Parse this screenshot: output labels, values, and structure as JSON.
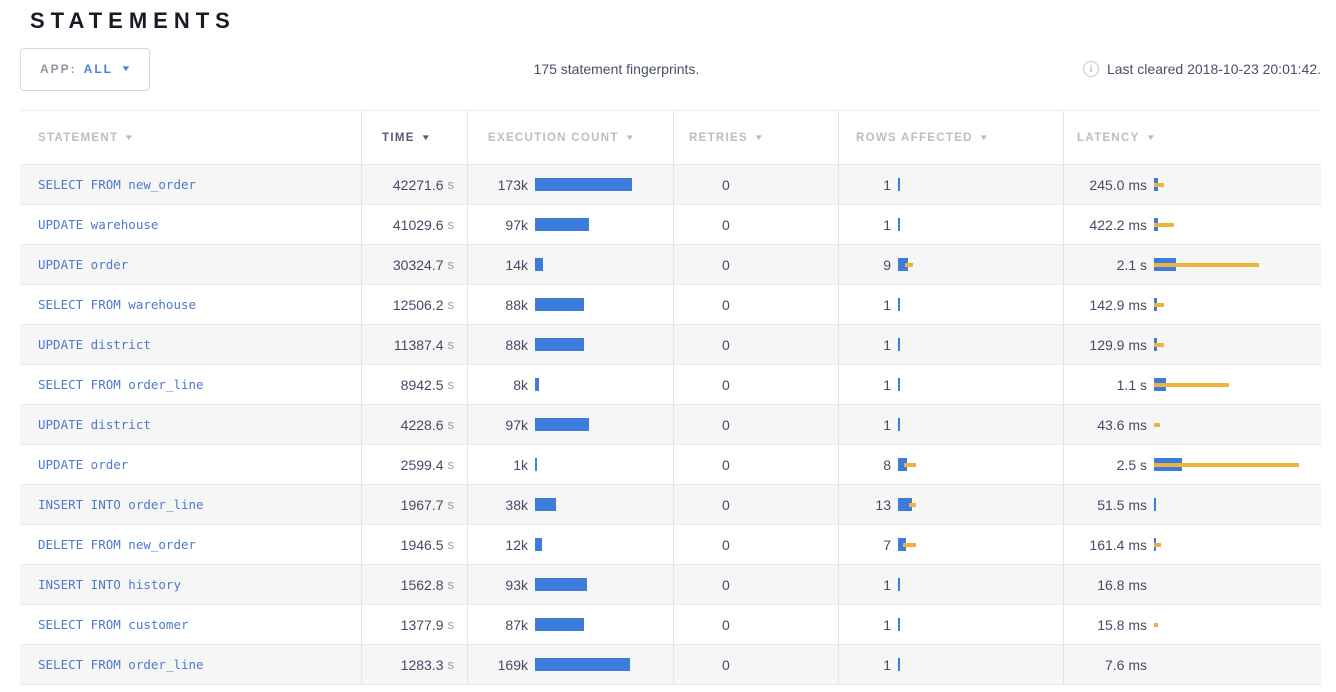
{
  "page_title": "STATEMENTS",
  "toolbar": {
    "app_label": "APP:",
    "app_value": "ALL",
    "summary": "175 statement fingerprints.",
    "last_cleared": "Last cleared 2018-10-23 20:01:42."
  },
  "icons": {
    "info": "i",
    "sort_arrow": "▼",
    "dropdown_caret": "▼"
  },
  "colors": {
    "bar_blue": "#3e7cdb",
    "bar_yellow": "#ecb33d",
    "link_blue": "#4e79cb",
    "accent_blue": "#4a7de2"
  },
  "table": {
    "columns": [
      {
        "label": "STATEMENT",
        "sorted": false
      },
      {
        "label": "TIME",
        "sorted": true
      },
      {
        "label": "EXECUTION COUNT",
        "sorted": false
      },
      {
        "label": "RETRIES",
        "sorted": false
      },
      {
        "label": "ROWS AFFECTED",
        "sorted": false
      },
      {
        "label": "LATENCY",
        "sorted": false
      }
    ],
    "rows": [
      {
        "statement": "SELECT FROM new_order",
        "time": "42271.6",
        "time_unit": "s",
        "exec_label": "173k",
        "exec_k": 173,
        "retries": "0",
        "rows_affected": "1",
        "rows_bar": 2,
        "rows_whisker": 0,
        "latency": "245.0 ms",
        "lat_bar": 4,
        "lat_whisker": 10
      },
      {
        "statement": "UPDATE warehouse",
        "time": "41029.6",
        "time_unit": "s",
        "exec_label": "97k",
        "exec_k": 97,
        "retries": "0",
        "rows_affected": "1",
        "rows_bar": 2,
        "rows_whisker": 0,
        "latency": "422.2 ms",
        "lat_bar": 4,
        "lat_whisker": 20
      },
      {
        "statement": "UPDATE order",
        "time": "30324.7",
        "time_unit": "s",
        "exec_label": "14k",
        "exec_k": 14,
        "retries": "0",
        "rows_affected": "9",
        "rows_bar": 10,
        "rows_whisker": 8,
        "latency": "2.1 s",
        "lat_bar": 22,
        "lat_whisker": 105
      },
      {
        "statement": "SELECT FROM warehouse",
        "time": "12506.2",
        "time_unit": "s",
        "exec_label": "88k",
        "exec_k": 88,
        "retries": "0",
        "rows_affected": "1",
        "rows_bar": 2,
        "rows_whisker": 0,
        "latency": "142.9 ms",
        "lat_bar": 3,
        "lat_whisker": 10
      },
      {
        "statement": "UPDATE district",
        "time": "11387.4",
        "time_unit": "s",
        "exec_label": "88k",
        "exec_k": 88,
        "retries": "0",
        "rows_affected": "1",
        "rows_bar": 2,
        "rows_whisker": 0,
        "latency": "129.9 ms",
        "lat_bar": 3,
        "lat_whisker": 10
      },
      {
        "statement": "SELECT FROM order_line",
        "time": "8942.5",
        "time_unit": "s",
        "exec_label": "8k",
        "exec_k": 8,
        "retries": "0",
        "rows_affected": "1",
        "rows_bar": 2,
        "rows_whisker": 0,
        "latency": "1.1 s",
        "lat_bar": 12,
        "lat_whisker": 75
      },
      {
        "statement": "UPDATE district",
        "time": "4228.6",
        "time_unit": "s",
        "exec_label": "97k",
        "exec_k": 97,
        "retries": "0",
        "rows_affected": "1",
        "rows_bar": 2,
        "rows_whisker": 0,
        "latency": "43.6 ms",
        "lat_bar": 0,
        "lat_whisker": 6
      },
      {
        "statement": "UPDATE order",
        "time": "2599.4",
        "time_unit": "s",
        "exec_label": "1k",
        "exec_k": 1,
        "retries": "0",
        "rows_affected": "8",
        "rows_bar": 9,
        "rows_whisker": 12,
        "latency": "2.5 s",
        "lat_bar": 28,
        "lat_whisker": 145
      },
      {
        "statement": "INSERT INTO order_line",
        "time": "1967.7",
        "time_unit": "s",
        "exec_label": "38k",
        "exec_k": 38,
        "retries": "0",
        "rows_affected": "13",
        "rows_bar": 14,
        "rows_whisker": 7,
        "latency": "51.5 ms",
        "lat_bar": 2,
        "lat_whisker": 0
      },
      {
        "statement": "DELETE FROM new_order",
        "time": "1946.5",
        "time_unit": "s",
        "exec_label": "12k",
        "exec_k": 12,
        "retries": "0",
        "rows_affected": "7",
        "rows_bar": 8,
        "rows_whisker": 13,
        "latency": "161.4 ms",
        "lat_bar": 2,
        "lat_whisker": 7
      },
      {
        "statement": "INSERT INTO history",
        "time": "1562.8",
        "time_unit": "s",
        "exec_label": "93k",
        "exec_k": 93,
        "retries": "0",
        "rows_affected": "1",
        "rows_bar": 2,
        "rows_whisker": 0,
        "latency": "16.8 ms",
        "lat_bar": 0,
        "lat_whisker": 0
      },
      {
        "statement": "SELECT FROM customer",
        "time": "1377.9",
        "time_unit": "s",
        "exec_label": "87k",
        "exec_k": 87,
        "retries": "0",
        "rows_affected": "1",
        "rows_bar": 2,
        "rows_whisker": 0,
        "latency": "15.8 ms",
        "lat_bar": 0,
        "lat_whisker": 4
      },
      {
        "statement": "SELECT FROM order_line",
        "time": "1283.3",
        "time_unit": "s",
        "exec_label": "169k",
        "exec_k": 169,
        "retries": "0",
        "rows_affected": "1",
        "rows_bar": 2,
        "rows_whisker": 0,
        "latency": "7.6 ms",
        "lat_bar": 0,
        "lat_whisker": 0
      }
    ]
  }
}
